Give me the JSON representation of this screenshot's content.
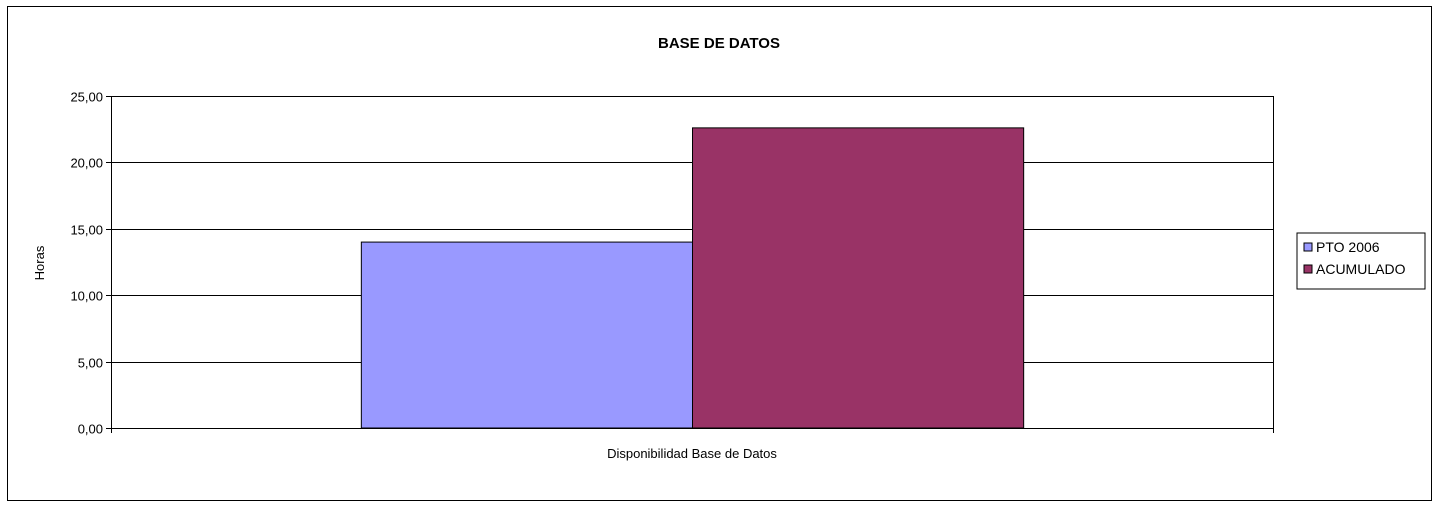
{
  "chart_data": {
    "type": "bar",
    "title": "BASE DE DATOS",
    "xlabel": "",
    "ylabel": "Horas",
    "categories": [
      "Disponibilidad Base de Datos"
    ],
    "series": [
      {
        "name": "PTO 2006",
        "values": [
          14.0
        ],
        "color": "#9999ff"
      },
      {
        "name": "ACUMULADO",
        "values": [
          22.6
        ],
        "color": "#993366"
      }
    ],
    "ylim": [
      0,
      25
    ],
    "yticks": [
      0,
      5,
      10,
      15,
      20,
      25
    ],
    "ytick_labels": [
      "0,00",
      "5,00",
      "10,00",
      "15,00",
      "20,00",
      "25,00"
    ],
    "grid": true,
    "legend_position": "right"
  }
}
